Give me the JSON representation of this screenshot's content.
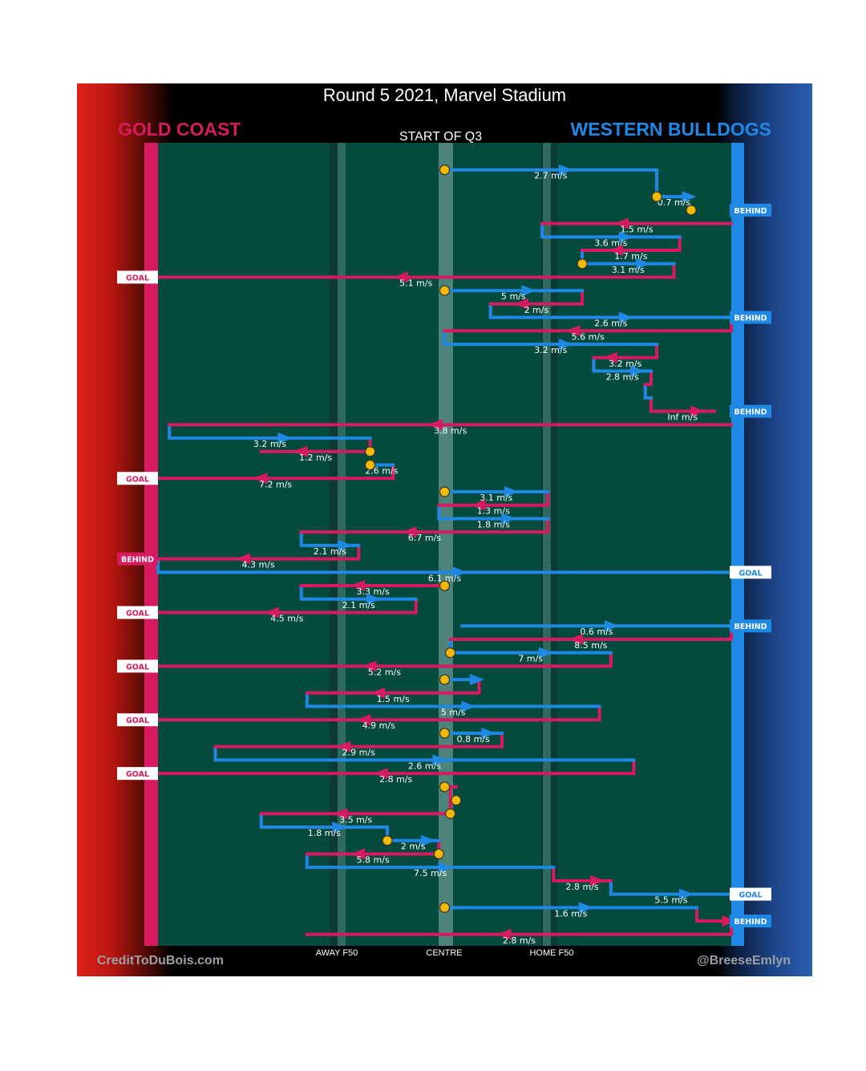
{
  "title": "Round 5 2021, Marvel Stadium",
  "teams": {
    "left": "GOLD COAST",
    "right": "WESTERN BULLDOGS"
  },
  "credits": {
    "left": "CreditToDuBois.com",
    "right": "@BreeseEmlyn"
  },
  "colors": {
    "gold_coast": "#d81b60",
    "bulldogs": "#1e88e5",
    "field": "#044a3d",
    "marker": "#f5b800"
  },
  "chart_data": {
    "type": "line",
    "title": "Round 5 2021, Marvel Stadium",
    "period_label": "START OF Q3",
    "x_axis": {
      "description": "position along the ground (0 = Gold Coast goal, 100 = Western Bulldogs goal)",
      "range": [
        0,
        100
      ],
      "ticks": [
        {
          "label": "AWAY F50",
          "value": 32
        },
        {
          "label": "CENTRE",
          "value": 50
        },
        {
          "label": "HOME F50",
          "value": 68
        }
      ]
    },
    "y_axis": {
      "description": "chain order through the third quarter (row index)",
      "range": [
        0,
        61
      ]
    },
    "segments": [
      {
        "team": "WB",
        "y": 1,
        "from": 50,
        "to": 87,
        "label": "2.7 m/s"
      },
      {
        "team": "WB",
        "y": 3,
        "from": 87,
        "to": 93,
        "label": "0.7 m/s"
      },
      {
        "team": "GC",
        "y": 5,
        "from": 100,
        "to": 67,
        "label": "1.5 m/s"
      },
      {
        "team": "WB",
        "y": 6,
        "from": 67,
        "to": 91,
        "label": "3.6 m/s"
      },
      {
        "team": "GC",
        "y": 7,
        "from": 91,
        "to": 74,
        "label": "1.7 m/s"
      },
      {
        "team": "WB",
        "y": 8,
        "from": 74,
        "to": 90,
        "label": "3.1 m/s"
      },
      {
        "team": "GC",
        "y": 9,
        "from": 90,
        "to": 0,
        "label": "5.1 m/s"
      },
      {
        "team": "WB",
        "y": 10,
        "from": 50,
        "to": 74,
        "label": "5 m/s"
      },
      {
        "team": "GC",
        "y": 11,
        "from": 74,
        "to": 58,
        "label": "2 m/s"
      },
      {
        "team": "WB",
        "y": 12,
        "from": 58,
        "to": 100,
        "label": "2.6 m/s"
      },
      {
        "team": "GC",
        "y": 13,
        "from": 100,
        "to": 50,
        "label": "5.6 m/s"
      },
      {
        "team": "WB",
        "y": 14,
        "from": 50,
        "to": 87,
        "label": "3.2 m/s"
      },
      {
        "team": "GC",
        "y": 15,
        "from": 87,
        "to": 76,
        "label": "3.2 m/s"
      },
      {
        "team": "WB",
        "y": 16,
        "from": 76,
        "to": 86,
        "label": "2.8 m/s"
      },
      {
        "team": "GC",
        "y": 17,
        "from": 86,
        "to": 85,
        "label": ""
      },
      {
        "team": "WB",
        "y": 18,
        "from": 85,
        "to": 86,
        "label": ""
      },
      {
        "team": "GC",
        "y": 19,
        "from": 86,
        "to": 97,
        "label": "Inf m/s"
      },
      {
        "team": "GC",
        "y": 20,
        "from": 100,
        "to": 2,
        "label": "3.8 m/s"
      },
      {
        "team": "WB",
        "y": 21,
        "from": 2,
        "to": 37,
        "label": "3.2 m/s"
      },
      {
        "team": "GC",
        "y": 22,
        "from": 37,
        "to": 18,
        "label": "1.2 m/s"
      },
      {
        "team": "WB",
        "y": 23,
        "from": 37,
        "to": 41,
        "label": "2.6 m/s"
      },
      {
        "team": "GC",
        "y": 24,
        "from": 41,
        "to": 0,
        "label": "7.2 m/s"
      },
      {
        "team": "WB",
        "y": 25,
        "from": 50,
        "to": 68,
        "label": "3.1 m/s"
      },
      {
        "team": "GC",
        "y": 26,
        "from": 68,
        "to": 49,
        "label": "1.3 m/s"
      },
      {
        "team": "WB",
        "y": 27,
        "from": 49,
        "to": 68,
        "label": "1.8 m/s"
      },
      {
        "team": "GC",
        "y": 28,
        "from": 68,
        "to": 25,
        "label": "6.7 m/s"
      },
      {
        "team": "WB",
        "y": 29,
        "from": 25,
        "to": 35,
        "label": "2.1 m/s"
      },
      {
        "team": "GC",
        "y": 30,
        "from": 35,
        "to": 0,
        "label": "4.3 m/s"
      },
      {
        "team": "WB",
        "y": 31,
        "from": 0,
        "to": 100,
        "label": "6.1 m/s"
      },
      {
        "team": "GC",
        "y": 32,
        "from": 50,
        "to": 25,
        "label": "3.3 m/s"
      },
      {
        "team": "WB",
        "y": 33,
        "from": 25,
        "to": 45,
        "label": "2.1 m/s"
      },
      {
        "team": "GC",
        "y": 34,
        "from": 45,
        "to": 0,
        "label": "4.5 m/s"
      },
      {
        "team": "WB",
        "y": 35,
        "from": 53,
        "to": 100,
        "label": "0.6 m/s"
      },
      {
        "team": "GC",
        "y": 36,
        "from": 100,
        "to": 51,
        "label": "8.5 m/s"
      },
      {
        "team": "WB",
        "y": 37,
        "from": 51,
        "to": 79,
        "label": "7 m/s"
      },
      {
        "team": "GC",
        "y": 38,
        "from": 79,
        "to": 0,
        "label": "5.2 m/s"
      },
      {
        "team": "WB",
        "y": 39,
        "from": 50,
        "to": 56,
        "label": ""
      },
      {
        "team": "GC",
        "y": 40,
        "from": 56,
        "to": 26,
        "label": "1.5 m/s"
      },
      {
        "team": "WB",
        "y": 41,
        "from": 26,
        "to": 77,
        "label": "5 m/s"
      },
      {
        "team": "GC",
        "y": 42,
        "from": 77,
        "to": 0,
        "label": "4.9 m/s"
      },
      {
        "team": "WB",
        "y": 43,
        "from": 50,
        "to": 60,
        "label": "0.8 m/s"
      },
      {
        "team": "GC",
        "y": 44,
        "from": 60,
        "to": 10,
        "label": "2.9 m/s"
      },
      {
        "team": "WB",
        "y": 45,
        "from": 10,
        "to": 83,
        "label": "2.6 m/s"
      },
      {
        "team": "GC",
        "y": 46,
        "from": 83,
        "to": 0,
        "label": "2.8 m/s"
      },
      {
        "team": "GC",
        "y": 47,
        "from": 50,
        "to": 52,
        "label": ""
      },
      {
        "team": "GC",
        "y": 49,
        "from": 51,
        "to": 18,
        "label": "3.5 m/s"
      },
      {
        "team": "WB",
        "y": 50,
        "from": 18,
        "to": 40,
        "label": "1.8 m/s"
      },
      {
        "team": "WB",
        "y": 51,
        "from": 40,
        "to": 49,
        "label": "2 m/s"
      },
      {
        "team": "GC",
        "y": 52,
        "from": 49,
        "to": 26,
        "label": "5.8 m/s"
      },
      {
        "team": "WB",
        "y": 53,
        "from": 26,
        "to": 69,
        "label": "7.5 m/s"
      },
      {
        "team": "GC",
        "y": 54,
        "from": 69,
        "to": 79,
        "label": "2.8 m/s"
      },
      {
        "team": "WB",
        "y": 55,
        "from": 79,
        "to": 100,
        "label": "5.5 m/s"
      },
      {
        "team": "WB",
        "y": 56,
        "from": 50,
        "to": 94,
        "label": "1.6 m/s"
      },
      {
        "team": "GC",
        "y": 57,
        "from": 94,
        "to": 100,
        "label": ""
      },
      {
        "team": "GC",
        "y": 58,
        "from": 100,
        "to": 26,
        "label": "2.8 m/s"
      }
    ],
    "markers": [
      {
        "x": 50,
        "y": 1
      },
      {
        "x": 87,
        "y": 3
      },
      {
        "x": 93,
        "y": 4
      },
      {
        "x": 74,
        "y": 8
      },
      {
        "x": 50,
        "y": 10
      },
      {
        "x": 37,
        "y": 22
      },
      {
        "x": 37,
        "y": 23
      },
      {
        "x": 50,
        "y": 25
      },
      {
        "x": 50,
        "y": 32
      },
      {
        "x": 51,
        "y": 37
      },
      {
        "x": 50,
        "y": 39
      },
      {
        "x": 50,
        "y": 43
      },
      {
        "x": 50,
        "y": 47
      },
      {
        "x": 52,
        "y": 48
      },
      {
        "x": 51,
        "y": 49
      },
      {
        "x": 40,
        "y": 51
      },
      {
        "x": 49,
        "y": 52
      },
      {
        "x": 50,
        "y": 56
      }
    ],
    "outcomes": [
      {
        "side": "right",
        "type": "BEHIND",
        "y": 4
      },
      {
        "side": "left",
        "type": "GOAL",
        "y": 9
      },
      {
        "side": "right",
        "type": "BEHIND",
        "y": 12
      },
      {
        "side": "right",
        "type": "BEHIND",
        "y": 19
      },
      {
        "side": "left",
        "type": "GOAL",
        "y": 24
      },
      {
        "side": "left",
        "type": "BEHIND",
        "y": 30
      },
      {
        "side": "right",
        "type": "GOAL",
        "y": 31
      },
      {
        "side": "left",
        "type": "GOAL",
        "y": 34
      },
      {
        "side": "right",
        "type": "BEHIND",
        "y": 35
      },
      {
        "side": "left",
        "type": "GOAL",
        "y": 38
      },
      {
        "side": "left",
        "type": "GOAL",
        "y": 42
      },
      {
        "side": "left",
        "type": "GOAL",
        "y": 46
      },
      {
        "side": "right",
        "type": "GOAL",
        "y": 55
      },
      {
        "side": "right",
        "type": "BEHIND",
        "y": 57
      }
    ]
  }
}
